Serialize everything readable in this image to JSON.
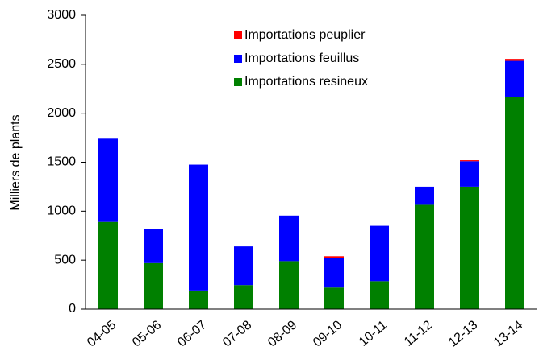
{
  "chart_data": {
    "type": "stacked_bar",
    "y_label": "Milliers de plants",
    "categories": [
      "04-05",
      "05-06",
      "06-07",
      "07-08",
      "08-09",
      "09-10",
      "10-11",
      "11-12",
      "12-13",
      "13-14"
    ],
    "series": [
      {
        "name": "Importations resineux",
        "color": "#008000",
        "values": [
          890,
          470,
          190,
          245,
          490,
          220,
          285,
          1065,
          1250,
          2165
        ]
      },
      {
        "name": "Importations feuillus",
        "color": "#0000ff",
        "values": [
          850,
          350,
          1285,
          395,
          465,
          300,
          565,
          185,
          260,
          370
        ]
      },
      {
        "name": "Importations peuplier",
        "color": "#ff0000",
        "values": [
          0,
          0,
          0,
          0,
          0,
          20,
          0,
          0,
          10,
          20
        ]
      }
    ],
    "ylim": [
      0,
      3000
    ],
    "yticks": [
      0,
      500,
      1000,
      1500,
      2000,
      2500,
      3000
    ]
  }
}
